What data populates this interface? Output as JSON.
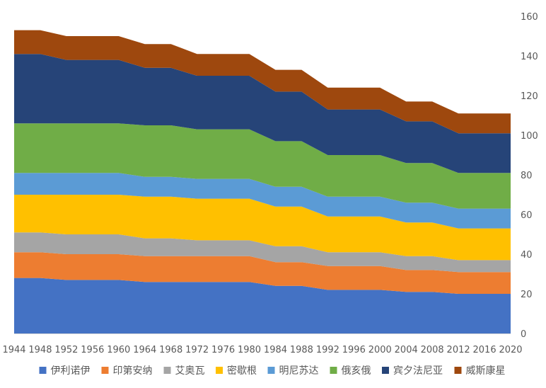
{
  "chart_data": {
    "type": "area",
    "stacked": true,
    "x": [
      1944,
      1948,
      1952,
      1956,
      1960,
      1964,
      1968,
      1972,
      1976,
      1980,
      1984,
      1988,
      1992,
      1996,
      2000,
      2004,
      2008,
      2012,
      2016,
      2020
    ],
    "ylim": [
      0,
      160
    ],
    "yticks": [
      0,
      20,
      40,
      60,
      80,
      100,
      120,
      140,
      160
    ],
    "y_axis_side": "right",
    "grid": false,
    "legend": "bottom",
    "series": [
      {
        "name": "伊利诺伊",
        "color": "#4472C4",
        "values": [
          28,
          28,
          27,
          27,
          27,
          26,
          26,
          26,
          26,
          26,
          24,
          24,
          22,
          22,
          22,
          21,
          21,
          20,
          20,
          20
        ]
      },
      {
        "name": "印第安纳",
        "color": "#ED7D31",
        "values": [
          13,
          13,
          13,
          13,
          13,
          13,
          13,
          13,
          13,
          13,
          12,
          12,
          12,
          12,
          12,
          11,
          11,
          11,
          11,
          11
        ]
      },
      {
        "name": "艾奥瓦",
        "color": "#A5A5A5",
        "values": [
          10,
          10,
          10,
          10,
          10,
          9,
          9,
          8,
          8,
          8,
          8,
          8,
          7,
          7,
          7,
          7,
          7,
          6,
          6,
          6
        ]
      },
      {
        "name": "密歇根",
        "color": "#FFC000",
        "values": [
          19,
          19,
          20,
          20,
          20,
          21,
          21,
          21,
          21,
          21,
          20,
          20,
          18,
          18,
          18,
          17,
          17,
          16,
          16,
          16
        ]
      },
      {
        "name": "明尼苏达",
        "color": "#5B9BD5",
        "values": [
          11,
          11,
          11,
          11,
          11,
          10,
          10,
          10,
          10,
          10,
          10,
          10,
          10,
          10,
          10,
          10,
          10,
          10,
          10,
          10
        ]
      },
      {
        "name": "俄亥俄",
        "color": "#70AD47",
        "values": [
          25,
          25,
          25,
          25,
          25,
          26,
          26,
          25,
          25,
          25,
          23,
          23,
          21,
          21,
          21,
          20,
          20,
          18,
          18,
          18
        ]
      },
      {
        "name": "宾夕法尼亚",
        "color": "#264478",
        "values": [
          35,
          35,
          32,
          32,
          32,
          29,
          29,
          27,
          27,
          27,
          25,
          25,
          23,
          23,
          23,
          21,
          21,
          20,
          20,
          20
        ]
      },
      {
        "name": "威斯康星",
        "color": "#9E480E",
        "values": [
          12,
          12,
          12,
          12,
          12,
          12,
          12,
          11,
          11,
          11,
          11,
          11,
          11,
          11,
          11,
          10,
          10,
          10,
          10,
          10
        ]
      }
    ]
  }
}
